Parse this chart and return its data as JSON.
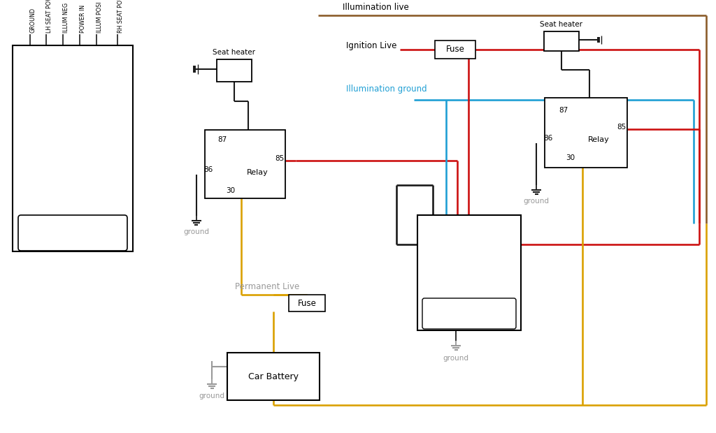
{
  "bg": "#ffffff",
  "c_blk": "#1a1a1a",
  "c_red": "#cc1111",
  "c_yel": "#daa000",
  "c_blu": "#1f9fd4",
  "c_brn": "#8B5C2A",
  "c_gry": "#999999",
  "pins_left": [
    "GROUND",
    "LH SEAT POWER",
    "ILLUM NEG",
    "POWER IN",
    "ILLUM POSI",
    "RH SEAT POWER"
  ]
}
